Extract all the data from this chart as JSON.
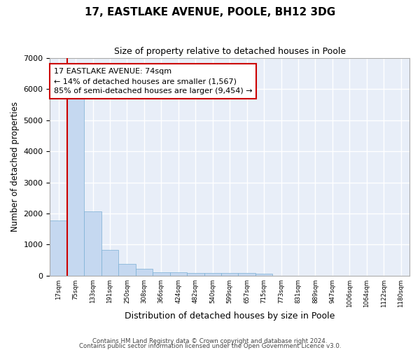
{
  "title": "17, EASTLAKE AVENUE, POOLE, BH12 3DG",
  "subtitle": "Size of property relative to detached houses in Poole",
  "xlabel": "Distribution of detached houses by size in Poole",
  "ylabel": "Number of detached properties",
  "categories": [
    "17sqm",
    "75sqm",
    "133sqm",
    "191sqm",
    "250sqm",
    "308sqm",
    "366sqm",
    "424sqm",
    "482sqm",
    "540sqm",
    "599sqm",
    "657sqm",
    "715sqm",
    "773sqm",
    "831sqm",
    "889sqm",
    "947sqm",
    "1006sqm",
    "1064sqm",
    "1122sqm",
    "1180sqm"
  ],
  "values": [
    1780,
    5780,
    2060,
    830,
    370,
    230,
    115,
    110,
    85,
    80,
    80,
    75,
    70,
    0,
    0,
    0,
    0,
    0,
    0,
    0,
    0
  ],
  "bar_color": "#c5d8f0",
  "bar_edge_color": "#7bafd4",
  "annotation_line1": "17 EASTLAKE AVENUE: 74sqm",
  "annotation_line2": "← 14% of detached houses are smaller (1,567)",
  "annotation_line3": "85% of semi-detached houses are larger (9,454) →",
  "annotation_box_color": "#ffffff",
  "annotation_box_edge": "#cc0000",
  "property_line_color": "#cc0000",
  "ylim": [
    0,
    7000
  ],
  "yticks": [
    0,
    1000,
    2000,
    3000,
    4000,
    5000,
    6000,
    7000
  ],
  "background_color": "#e8eef8",
  "grid_color": "#ffffff",
  "footer1": "Contains HM Land Registry data © Crown copyright and database right 2024.",
  "footer2": "Contains public sector information licensed under the Open Government Licence v3.0."
}
